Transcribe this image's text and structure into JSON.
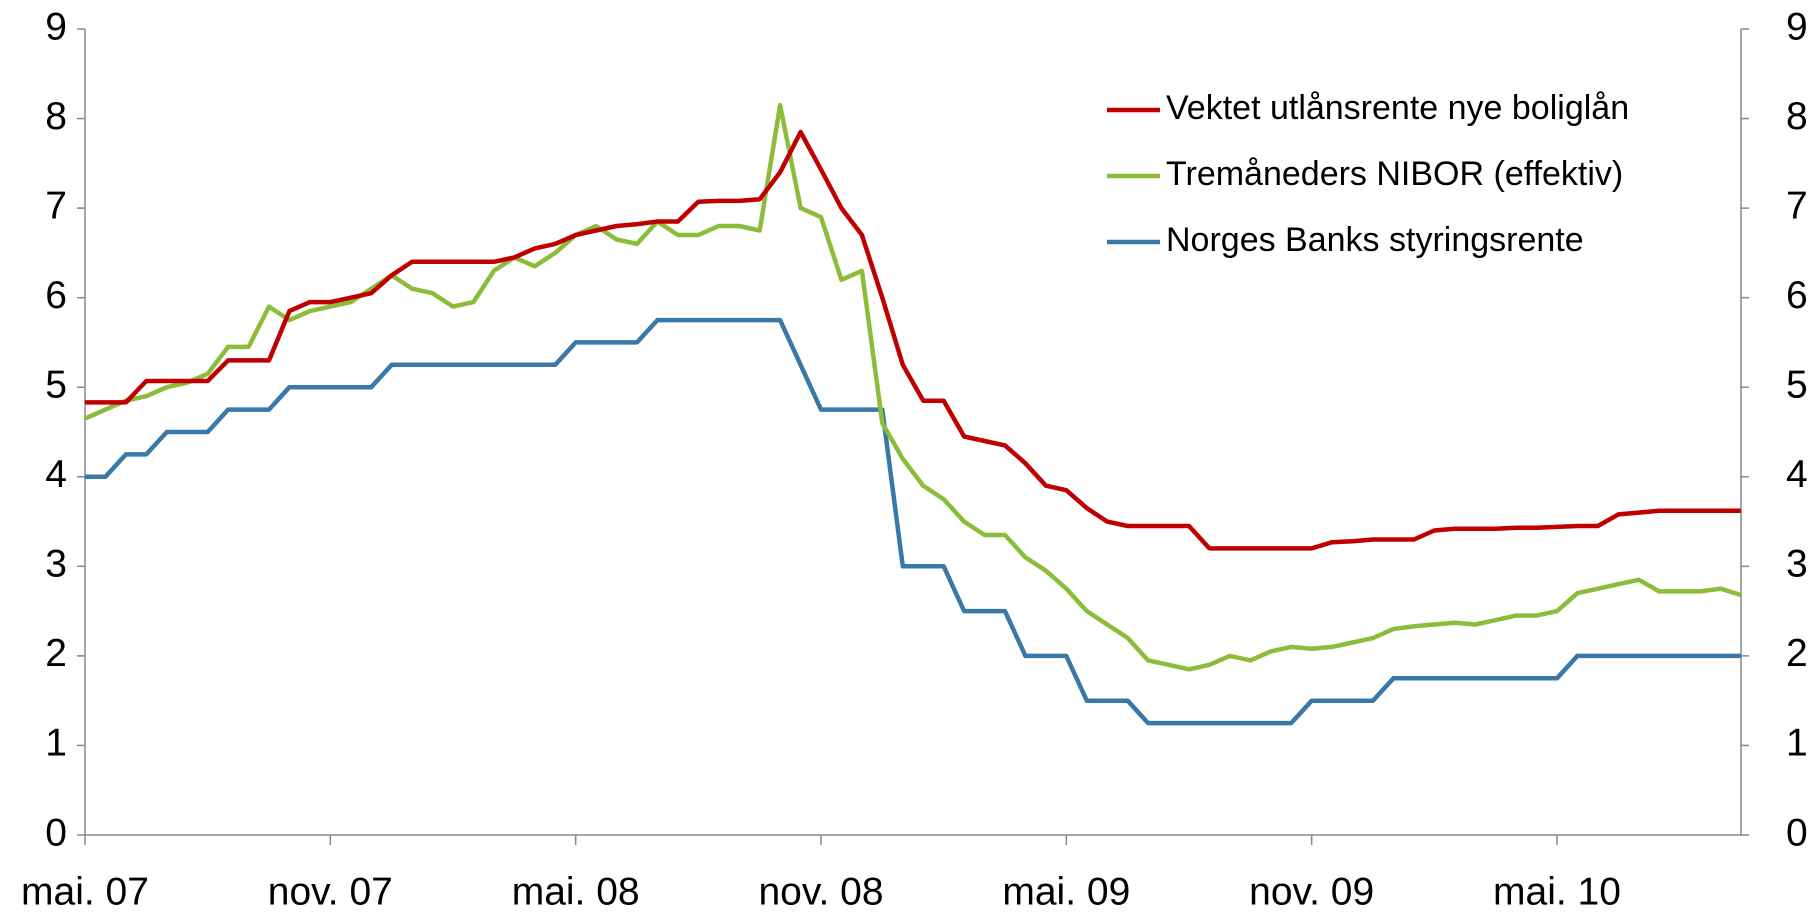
{
  "chart_data": {
    "type": "line",
    "categories": [
      "mai. 07",
      null,
      null,
      null,
      null,
      null,
      null,
      null,
      null,
      null,
      null,
      null,
      "nov. 07",
      null,
      null,
      null,
      null,
      null,
      null,
      null,
      null,
      null,
      null,
      null,
      "mai. 08",
      null,
      null,
      null,
      null,
      null,
      null,
      null,
      null,
      null,
      null,
      null,
      "nov. 08",
      null,
      null,
      null,
      null,
      null,
      null,
      null,
      null,
      null,
      null,
      null,
      "mai. 09",
      null,
      null,
      null,
      null,
      null,
      null,
      null,
      null,
      null,
      null,
      null,
      "nov. 09",
      null,
      null,
      null,
      null,
      null,
      null,
      null,
      null,
      null,
      null,
      null,
      "mai. 10",
      null,
      null,
      null,
      null,
      null,
      null,
      null,
      null,
      null
    ],
    "series": [
      {
        "name": "Vektet utlånsrente nye boliglån",
        "color": "#c00000",
        "values": [
          4.83,
          4.83,
          4.83,
          5.07,
          5.07,
          5.07,
          5.07,
          5.3,
          5.3,
          5.3,
          5.85,
          5.95,
          5.95,
          6.0,
          6.05,
          6.25,
          6.4,
          6.4,
          6.4,
          6.4,
          6.4,
          6.45,
          6.55,
          6.6,
          6.7,
          6.75,
          6.8,
          6.82,
          6.85,
          6.85,
          7.07,
          7.08,
          7.08,
          7.1,
          7.4,
          7.85,
          7.43,
          7.0,
          6.7,
          6.0,
          5.25,
          4.85,
          4.85,
          4.45,
          4.4,
          4.35,
          4.15,
          3.9,
          3.85,
          3.65,
          3.5,
          3.45,
          3.45,
          3.45,
          3.45,
          3.2,
          3.2,
          3.2,
          3.2,
          3.2,
          3.2,
          3.27,
          3.28,
          3.3,
          3.3,
          3.3,
          3.4,
          3.42,
          3.42,
          3.42,
          3.43,
          3.43,
          3.44,
          3.45,
          3.45,
          3.58,
          3.6,
          3.62,
          3.62,
          3.62,
          3.62,
          3.62
        ]
      },
      {
        "name": "Tremåneders NIBOR (effektiv)",
        "color": "#8cbd3a",
        "values": [
          4.65,
          4.75,
          4.85,
          4.9,
          5.0,
          5.05,
          5.15,
          5.45,
          5.45,
          5.9,
          5.75,
          5.85,
          5.9,
          5.95,
          6.1,
          6.25,
          6.1,
          6.05,
          5.9,
          5.95,
          6.3,
          6.45,
          6.35,
          6.5,
          6.7,
          6.8,
          6.65,
          6.6,
          6.85,
          6.7,
          6.7,
          6.8,
          6.8,
          6.75,
          8.15,
          7.0,
          6.9,
          6.2,
          6.3,
          4.6,
          4.2,
          3.9,
          3.75,
          3.5,
          3.35,
          3.35,
          3.1,
          2.95,
          2.75,
          2.5,
          2.35,
          2.2,
          1.95,
          1.9,
          1.85,
          1.9,
          2.0,
          1.95,
          2.05,
          2.1,
          2.08,
          2.1,
          2.15,
          2.2,
          2.3,
          2.33,
          2.35,
          2.37,
          2.35,
          2.4,
          2.45,
          2.45,
          2.5,
          2.7,
          2.75,
          2.8,
          2.85,
          2.72,
          2.72,
          2.72,
          2.75,
          2.68
        ]
      },
      {
        "name": "Norges Banks styringsrente",
        "color": "#3a78a8",
        "values": [
          4,
          4,
          4.25,
          4.25,
          4.5,
          4.5,
          4.5,
          4.75,
          4.75,
          4.75,
          5,
          5,
          5,
          5,
          5,
          5.25,
          5.25,
          5.25,
          5.25,
          5.25,
          5.25,
          5.25,
          5.25,
          5.25,
          5.5,
          5.5,
          5.5,
          5.5,
          5.75,
          5.75,
          5.75,
          5.75,
          5.75,
          5.75,
          5.75,
          5.25,
          4.75,
          4.75,
          4.75,
          4.75,
          3,
          3,
          3,
          2.5,
          2.5,
          2.5,
          2,
          2,
          2,
          1.5,
          1.5,
          1.5,
          1.25,
          1.25,
          1.25,
          1.25,
          1.25,
          1.25,
          1.25,
          1.25,
          1.5,
          1.5,
          1.5,
          1.5,
          1.75,
          1.75,
          1.75,
          1.75,
          1.75,
          1.75,
          1.75,
          1.75,
          1.75,
          2,
          2,
          2,
          2,
          2,
          2,
          2,
          2,
          2
        ]
      }
    ],
    "ylim": [
      0,
      9
    ],
    "yticks": [
      0,
      1,
      2,
      3,
      4,
      5,
      6,
      7,
      8,
      9
    ],
    "y2lim": [
      0,
      9
    ],
    "y2ticks": [
      0,
      1,
      2,
      3,
      4,
      5,
      6,
      7,
      8,
      9
    ],
    "legend": "upper right"
  }
}
